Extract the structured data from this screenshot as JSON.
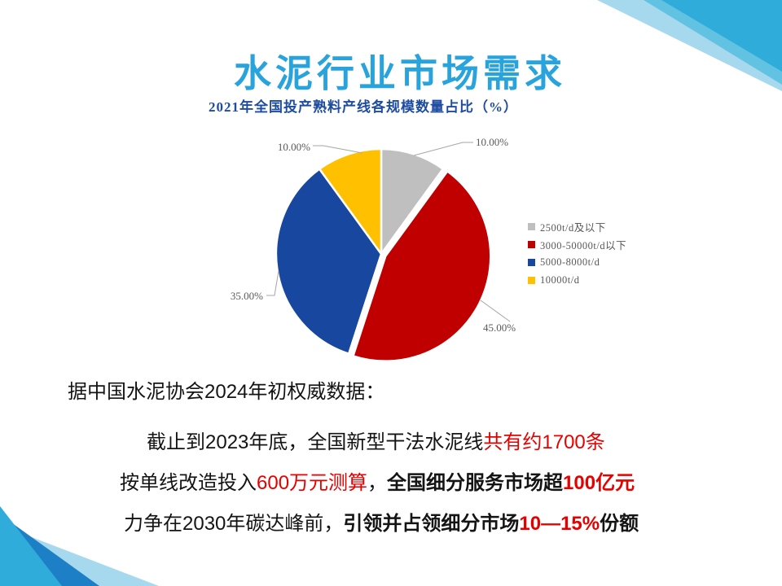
{
  "slide": {
    "title": "水泥行业市场需求",
    "colors": {
      "title": "#29A3DC",
      "chart_title": "#1E4CA1",
      "red_text": "#E60000",
      "body_text": "#141414",
      "label_gray": "#595959",
      "leader_gray": "#A6A6A6",
      "deco_cyan": "#2FACDA",
      "deco_mid": "#62C2E2",
      "deco_light": "#A6D8EE",
      "deco_blue": "#1D80C6"
    }
  },
  "chart_data": {
    "type": "pie",
    "title": "2021年全国投产熟料产线各规模数量占比（%）",
    "categories": [
      "2500t/d及以下",
      "3000-50000t/d以下",
      "5000-8000t/d",
      "10000t/d"
    ],
    "values": [
      10,
      45,
      35,
      10
    ],
    "labels": [
      "10.00%",
      "45.00%",
      "35.00%",
      "10.00%"
    ],
    "colors": [
      "#BFBFBF",
      "#C00000",
      "#17479E",
      "#FFC000"
    ],
    "start_angle_deg": 0,
    "direction": "clockwise",
    "exploded_slice_index": 1,
    "legend_position": "right"
  },
  "body": {
    "intro": "据中国水泥协会2024年初权威数据：",
    "line2": [
      {
        "text": "截止到2023年底，全国新型干法水泥线"
      },
      {
        "text": "共有约1700条"
      }
    ],
    "line3": [
      {
        "text": "按单线改造投入"
      },
      {
        "text": "600万元测算"
      },
      {
        "text": "，"
      },
      {
        "text": "全国细分服务市场超"
      },
      {
        "text": "100亿元"
      }
    ],
    "line4": [
      {
        "text": "力争在2030年碳达峰前，"
      },
      {
        "text": "引领并占领细分市场"
      },
      {
        "text": "10—15%"
      },
      {
        "text": "份额"
      }
    ]
  }
}
